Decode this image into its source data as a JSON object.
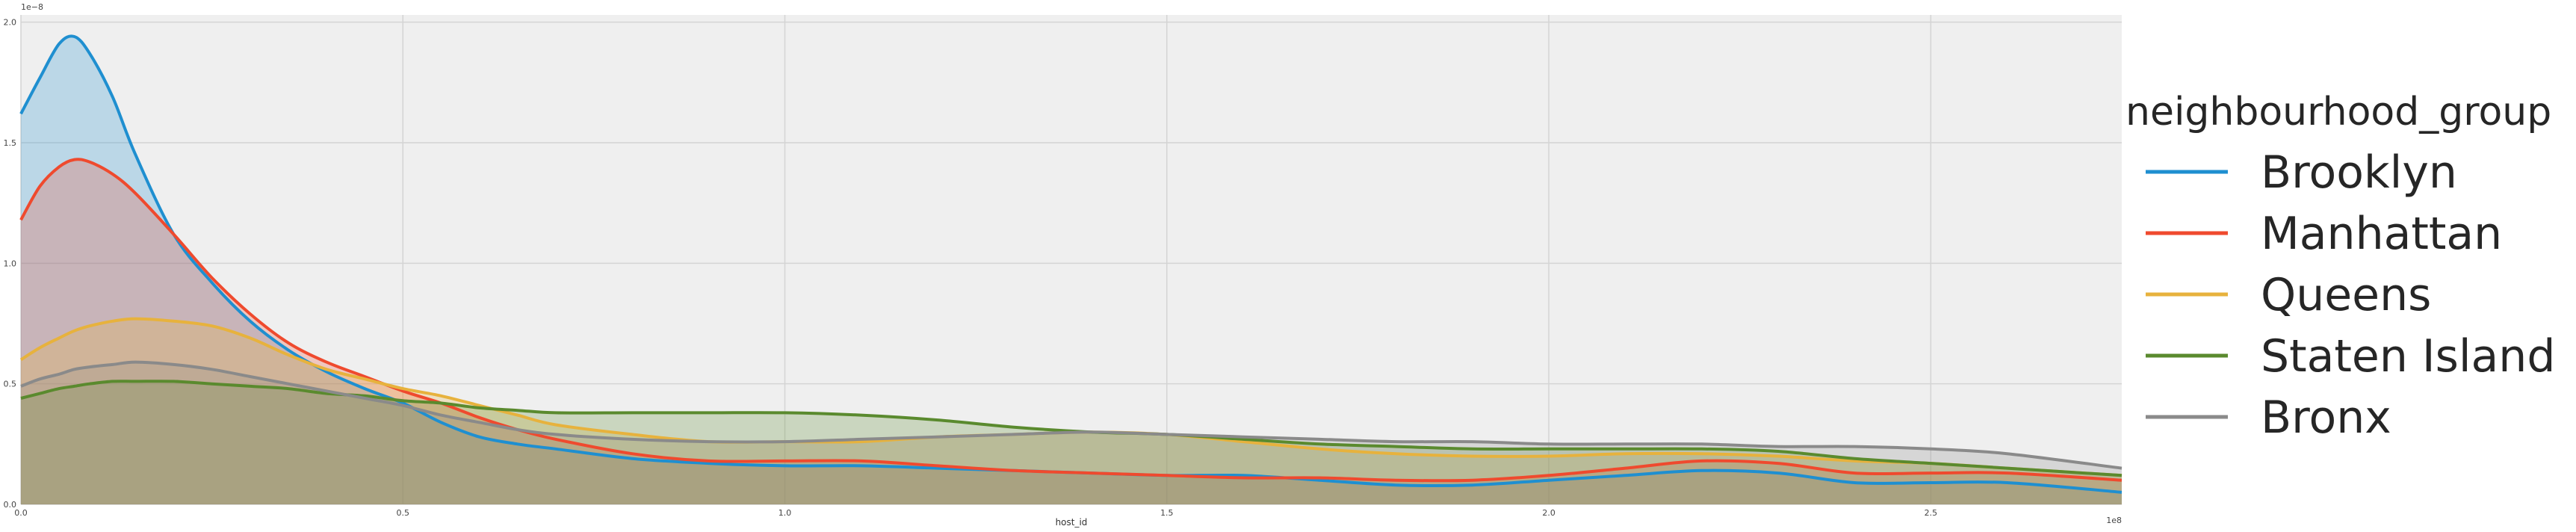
{
  "chart_data": {
    "type": "area",
    "xlabel": "host_id",
    "ylabel": "",
    "x_scale_label": "1e8",
    "y_scale_label": "1e−8",
    "xlim": [
      0,
      2.75
    ],
    "ylim": [
      0,
      2.03
    ],
    "x_ticks": [
      0.0,
      0.5,
      1.0,
      1.5,
      2.0,
      2.5
    ],
    "x_tick_labels": [
      "0.0",
      "0.5",
      "1.0",
      "1.5",
      "2.0",
      "2.5"
    ],
    "y_ticks": [
      0.0,
      0.5,
      1.0,
      1.5,
      2.0
    ],
    "y_tick_labels": [
      "0.0",
      "0.5",
      "1.0",
      "1.5",
      "2.0"
    ],
    "grid": true,
    "background": "#efefef",
    "legend": {
      "title": "neighbourhood_group",
      "placement": "right-outside"
    },
    "series": [
      {
        "name": "Brooklyn",
        "color": "#1f8fd0",
        "fill": "#a8d2ea",
        "x": [
          0,
          0.025,
          0.05,
          0.07,
          0.09,
          0.12,
          0.15,
          0.2,
          0.25,
          0.3,
          0.35,
          0.4,
          0.45,
          0.5,
          0.55,
          0.6,
          0.65,
          0.7,
          0.8,
          0.9,
          1.0,
          1.1,
          1.2,
          1.3,
          1.4,
          1.5,
          1.6,
          1.7,
          1.8,
          1.9,
          2.0,
          2.1,
          2.2,
          2.3,
          2.4,
          2.5,
          2.6,
          2.75
        ],
        "y": [
          1.62,
          1.77,
          1.91,
          1.94,
          1.87,
          1.69,
          1.45,
          1.12,
          0.92,
          0.76,
          0.64,
          0.55,
          0.48,
          0.42,
          0.34,
          0.28,
          0.25,
          0.23,
          0.19,
          0.17,
          0.16,
          0.16,
          0.15,
          0.14,
          0.13,
          0.12,
          0.12,
          0.1,
          0.08,
          0.08,
          0.1,
          0.12,
          0.14,
          0.13,
          0.09,
          0.09,
          0.09,
          0.05
        ]
      },
      {
        "name": "Manhattan",
        "color": "#ef4a2e",
        "fill": "#d7aeb0",
        "x": [
          0,
          0.025,
          0.05,
          0.07,
          0.09,
          0.12,
          0.15,
          0.2,
          0.25,
          0.3,
          0.35,
          0.4,
          0.45,
          0.5,
          0.55,
          0.6,
          0.65,
          0.7,
          0.8,
          0.9,
          1.0,
          1.1,
          1.2,
          1.3,
          1.4,
          1.5,
          1.6,
          1.7,
          1.8,
          1.9,
          2.0,
          2.1,
          2.2,
          2.3,
          2.4,
          2.5,
          2.6,
          2.75
        ],
        "y": [
          1.18,
          1.32,
          1.4,
          1.43,
          1.42,
          1.37,
          1.29,
          1.12,
          0.94,
          0.79,
          0.67,
          0.59,
          0.53,
          0.47,
          0.42,
          0.36,
          0.31,
          0.27,
          0.21,
          0.18,
          0.18,
          0.18,
          0.16,
          0.14,
          0.13,
          0.12,
          0.11,
          0.11,
          0.1,
          0.1,
          0.12,
          0.15,
          0.18,
          0.17,
          0.13,
          0.13,
          0.13,
          0.1
        ]
      },
      {
        "name": "Queens",
        "color": "#e7b23d",
        "fill": "#e4cf9b",
        "x": [
          0,
          0.025,
          0.05,
          0.07,
          0.09,
          0.12,
          0.15,
          0.2,
          0.25,
          0.3,
          0.35,
          0.4,
          0.45,
          0.5,
          0.55,
          0.6,
          0.65,
          0.7,
          0.8,
          0.9,
          1.0,
          1.1,
          1.2,
          1.3,
          1.4,
          1.5,
          1.6,
          1.7,
          1.8,
          1.9,
          2.0,
          2.1,
          2.2,
          2.3,
          2.4,
          2.5,
          2.6,
          2.75
        ],
        "y": [
          0.6,
          0.65,
          0.69,
          0.72,
          0.74,
          0.76,
          0.77,
          0.76,
          0.74,
          0.69,
          0.62,
          0.56,
          0.52,
          0.48,
          0.45,
          0.41,
          0.37,
          0.33,
          0.29,
          0.26,
          0.26,
          0.26,
          0.28,
          0.29,
          0.3,
          0.29,
          0.26,
          0.23,
          0.21,
          0.2,
          0.2,
          0.21,
          0.21,
          0.2,
          0.18,
          0.17,
          0.15,
          0.12
        ]
      },
      {
        "name": "Staten Island",
        "color": "#5a8a2e",
        "fill": "#cbd7c0",
        "x": [
          0,
          0.025,
          0.05,
          0.07,
          0.09,
          0.12,
          0.15,
          0.2,
          0.25,
          0.3,
          0.35,
          0.4,
          0.45,
          0.5,
          0.55,
          0.6,
          0.65,
          0.7,
          0.8,
          0.9,
          1.0,
          1.1,
          1.2,
          1.3,
          1.4,
          1.5,
          1.6,
          1.7,
          1.8,
          1.9,
          2.0,
          2.1,
          2.2,
          2.3,
          2.4,
          2.5,
          2.6,
          2.75
        ],
        "y": [
          0.44,
          0.46,
          0.48,
          0.49,
          0.5,
          0.51,
          0.51,
          0.51,
          0.5,
          0.49,
          0.48,
          0.46,
          0.45,
          0.43,
          0.42,
          0.4,
          0.39,
          0.38,
          0.38,
          0.38,
          0.38,
          0.37,
          0.35,
          0.32,
          0.3,
          0.29,
          0.27,
          0.25,
          0.24,
          0.23,
          0.23,
          0.23,
          0.23,
          0.22,
          0.19,
          0.17,
          0.15,
          0.12
        ]
      },
      {
        "name": "Bronx",
        "color": "#8a8a8a",
        "fill": "#a8a3a3",
        "x": [
          0,
          0.025,
          0.05,
          0.07,
          0.09,
          0.12,
          0.15,
          0.2,
          0.25,
          0.3,
          0.35,
          0.4,
          0.45,
          0.5,
          0.55,
          0.6,
          0.65,
          0.7,
          0.8,
          0.9,
          1.0,
          1.1,
          1.2,
          1.3,
          1.4,
          1.5,
          1.6,
          1.7,
          1.8,
          1.9,
          2.0,
          2.1,
          2.2,
          2.3,
          2.4,
          2.5,
          2.6,
          2.75
        ],
        "y": [
          0.49,
          0.52,
          0.54,
          0.56,
          0.57,
          0.58,
          0.59,
          0.58,
          0.56,
          0.53,
          0.5,
          0.47,
          0.44,
          0.41,
          0.37,
          0.34,
          0.31,
          0.29,
          0.27,
          0.26,
          0.26,
          0.27,
          0.28,
          0.29,
          0.3,
          0.29,
          0.28,
          0.27,
          0.26,
          0.26,
          0.25,
          0.25,
          0.25,
          0.24,
          0.24,
          0.23,
          0.21,
          0.15
        ]
      }
    ]
  }
}
